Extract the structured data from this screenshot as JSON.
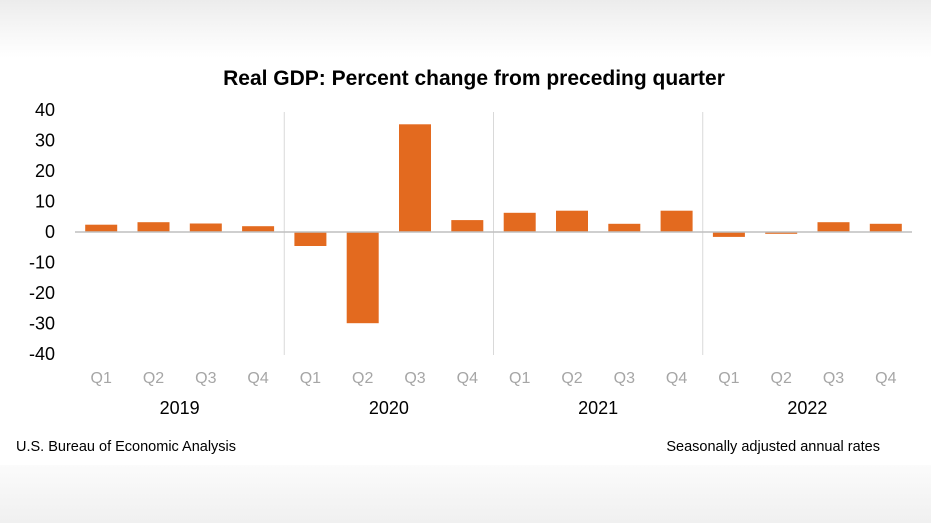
{
  "chart_data": {
    "type": "bar",
    "title": "Real GDP:  Percent change from preceding quarter",
    "xlabel": "",
    "ylabel": "",
    "ylim": [
      -40,
      40
    ],
    "yticks": [
      "40",
      "30",
      "20",
      "10",
      "0",
      "-10",
      "-20",
      "-30",
      "-40"
    ],
    "ytick_values": [
      40,
      30,
      20,
      10,
      0,
      -10,
      -20,
      -30,
      -40
    ],
    "quarter_labels": [
      "Q1",
      "Q2",
      "Q3",
      "Q4",
      "Q1",
      "Q2",
      "Q3",
      "Q4",
      "Q1",
      "Q2",
      "Q3",
      "Q4",
      "Q1",
      "Q2",
      "Q3",
      "Q4"
    ],
    "years": [
      "2019",
      "2020",
      "2021",
      "2022"
    ],
    "categories": [
      "2019 Q1",
      "2019 Q2",
      "2019 Q3",
      "2019 Q4",
      "2020 Q1",
      "2020 Q2",
      "2020 Q3",
      "2020 Q4",
      "2021 Q1",
      "2021 Q2",
      "2021 Q3",
      "2021 Q4",
      "2022 Q1",
      "2022 Q2",
      "2022 Q3",
      "2022 Q4"
    ],
    "series": [
      {
        "name": "Real GDP percent change",
        "values": [
          2.4,
          3.2,
          2.8,
          1.9,
          -4.6,
          -29.9,
          35.3,
          3.9,
          6.3,
          7.0,
          2.7,
          7.0,
          -1.6,
          -0.6,
          3.2,
          2.7
        ]
      }
    ],
    "colors": {
      "bar": "#e36a1f",
      "axis": "#bfbfbf",
      "separator": "#d9d9d9",
      "tick": "#a6a6a6"
    },
    "grid": false
  },
  "footer": {
    "source": "U.S. Bureau of Economic Analysis",
    "note": "Seasonally adjusted annual rates"
  }
}
